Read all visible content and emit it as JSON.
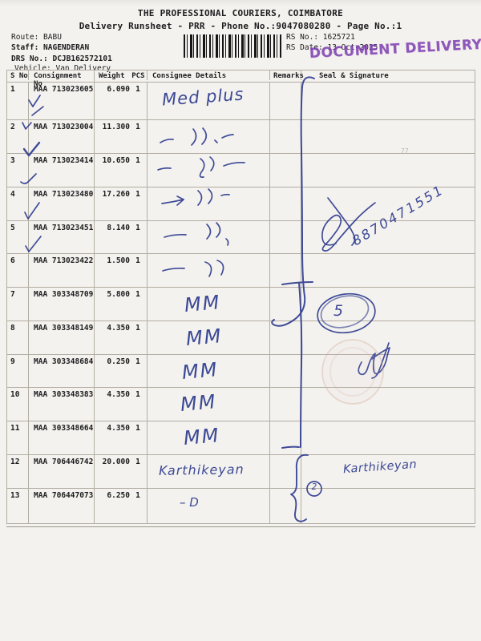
{
  "page": {
    "title_line1": "THE PROFESSIONAL COURIERS, COIMBATORE",
    "title_line2": "Delivery Runsheet - PRR - Phone No.:9047080280 - Page No.:1"
  },
  "info": {
    "route_label": "Route: ",
    "route_value": "BABU",
    "staff_label": "Staff: ",
    "staff_value": "NAGENDERAN",
    "drs_label": "DRS No.: ",
    "drs_value": "DCJB162572101",
    "vehicle_label": "Vehicle: ",
    "vehicle_value": "Van Delivery",
    "rs_no_label": "RS No.: ",
    "rs_no_value": "1625721",
    "rs_date_label": "RS Date: ",
    "rs_date_value": "13-Oct-2025"
  },
  "stamp": {
    "text": "DOCUMENT DELIVERY",
    "color": "#7d3cb2"
  },
  "table": {
    "headers": {
      "s_no": "S No",
      "consignment": "Consignment No",
      "weight": "Weight",
      "pcs": "PCS",
      "consignee": "Consignee Details",
      "remarks": "Remarks",
      "seal": "Seal & Signature"
    },
    "rows": [
      {
        "s_no": "1",
        "consignment": "MAA 713023605",
        "weight": "6.090",
        "pcs": "1",
        "note": "Med plus",
        "note_type": "text"
      },
      {
        "s_no": "2",
        "consignment": "MAA 713023004",
        "weight": "11.300",
        "pcs": "1",
        "note": "〃",
        "note_type": "ditto"
      },
      {
        "s_no": "3",
        "consignment": "MAA 713023414",
        "weight": "10.650",
        "pcs": "1",
        "note": "〃",
        "note_type": "ditto"
      },
      {
        "s_no": "4",
        "consignment": "MAA 713023480",
        "weight": "17.260",
        "pcs": "1",
        "note": "〃",
        "note_type": "ditto"
      },
      {
        "s_no": "5",
        "consignment": "MAA 713023451",
        "weight": "8.140",
        "pcs": "1",
        "note": "〃",
        "note_type": "ditto"
      },
      {
        "s_no": "6",
        "consignment": "MAA 713023422",
        "weight": "1.500",
        "pcs": "1",
        "note": "〃",
        "note_type": "ditto"
      },
      {
        "s_no": "7",
        "consignment": "MAA 303348709",
        "weight": "5.800",
        "pcs": "1",
        "note": "MM",
        "note_type": "mm"
      },
      {
        "s_no": "8",
        "consignment": "MAA 303348149",
        "weight": "4.350",
        "pcs": "1",
        "note": "MM",
        "note_type": "mm"
      },
      {
        "s_no": "9",
        "consignment": "MAA 303348684",
        "weight": "0.250",
        "pcs": "1",
        "note": "MM",
        "note_type": "mm"
      },
      {
        "s_no": "10",
        "consignment": "MAA 303348383",
        "weight": "4.350",
        "pcs": "1",
        "note": "MM",
        "note_type": "mm"
      },
      {
        "s_no": "11",
        "consignment": "MAA 303348664",
        "weight": "4.350",
        "pcs": "1",
        "note": "MM",
        "note_type": "mm"
      },
      {
        "s_no": "12",
        "consignment": "MAA 706446742",
        "weight": "20.000",
        "pcs": "1",
        "note": "Karthikeyan",
        "note_type": "text"
      },
      {
        "s_no": "13",
        "consignment": "MAA 706447073",
        "weight": "6.250",
        "pcs": "1",
        "note": "– D",
        "note_type": "text"
      }
    ]
  },
  "handwriting": {
    "phone": "8870471551",
    "circle_badge_5": "5",
    "circle_badge_2": "2",
    "seal_signature_name": "Karthikeyan",
    "faint_mark": "77",
    "ink_color": "#2c3a8e"
  }
}
